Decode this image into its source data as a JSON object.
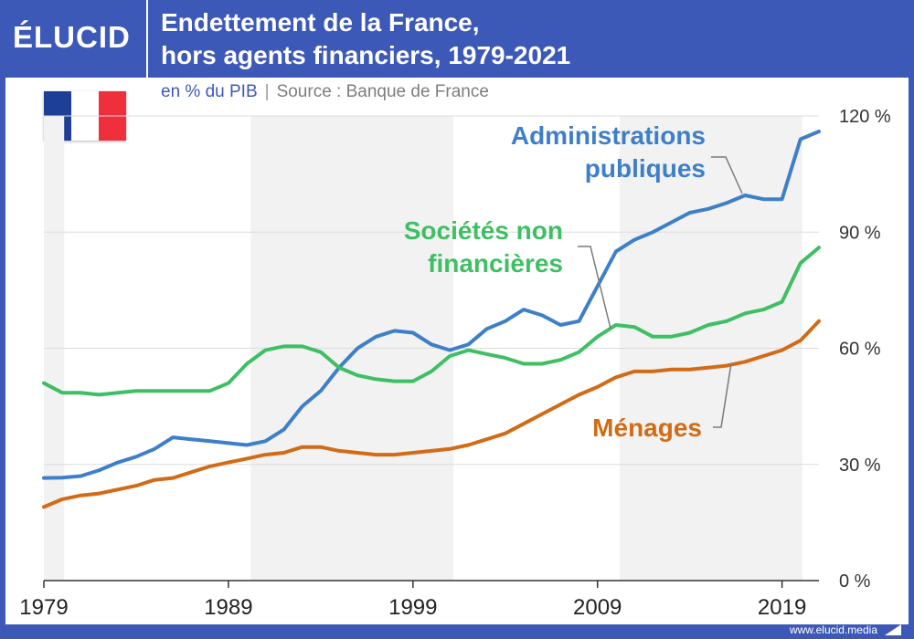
{
  "brand": {
    "logo": "ÉLUCID",
    "url": "www.elucid.media"
  },
  "header": {
    "title_line1": "Endettement de la France,",
    "title_line2": "hors agents financiers, 1979-2021"
  },
  "subtitle": {
    "unit": "en % du PIB",
    "separator": "|",
    "source": "Source : Banque de France"
  },
  "colors": {
    "administrations": "#3e7fc9",
    "societes": "#3fbf63",
    "menages": "#d26b16",
    "band": "#f2f2f2",
    "brand": "#3d59b8"
  },
  "chart_data": {
    "type": "line",
    "xlim": [
      1979,
      2021
    ],
    "ylim": [
      0,
      120
    ],
    "yticks": [
      0,
      30,
      60,
      90,
      120
    ],
    "ytick_labels": [
      "0 %",
      "30 %",
      "60 %",
      "90 %",
      "120 %"
    ],
    "xticks": [
      1979,
      1989,
      1999,
      2009,
      2019
    ],
    "xtick_labels": [
      "1979",
      "1989",
      "1999",
      "2009",
      "2019"
    ],
    "shaded_periods": [
      [
        1979,
        1980.1
      ],
      [
        1990.2,
        2001.2
      ],
      [
        2010.2,
        2020.1
      ]
    ],
    "grid": true,
    "series": [
      {
        "key": "administrations",
        "name": [
          "Administrations",
          "publiques"
        ],
        "points": [
          [
            1979,
            26.5
          ],
          [
            1980,
            26.6
          ],
          [
            1981,
            27
          ],
          [
            1982,
            28.5
          ],
          [
            1983,
            30.5
          ],
          [
            1984,
            32
          ],
          [
            1985,
            34
          ],
          [
            1986,
            37
          ],
          [
            1987,
            36.5
          ],
          [
            1988,
            36
          ],
          [
            1989,
            35.5
          ],
          [
            1990,
            35
          ],
          [
            1991,
            36
          ],
          [
            1992,
            39
          ],
          [
            1993,
            45
          ],
          [
            1994,
            49
          ],
          [
            1995,
            55
          ],
          [
            1996,
            60
          ],
          [
            1997,
            63
          ],
          [
            1998,
            64.5
          ],
          [
            1999,
            64
          ],
          [
            2000,
            61
          ],
          [
            2001,
            59.5
          ],
          [
            2002,
            61
          ],
          [
            2003,
            65
          ],
          [
            2004,
            67
          ],
          [
            2005,
            70
          ],
          [
            2006,
            68.5
          ],
          [
            2007,
            66
          ],
          [
            2008,
            67
          ],
          [
            2009,
            76
          ],
          [
            2010,
            85
          ],
          [
            2011,
            88
          ],
          [
            2012,
            90
          ],
          [
            2013,
            92.5
          ],
          [
            2014,
            95
          ],
          [
            2015,
            96
          ],
          [
            2016,
            97.5
          ],
          [
            2017,
            99.5
          ],
          [
            2018,
            98.5
          ],
          [
            2019,
            98.5
          ],
          [
            2020,
            114
          ],
          [
            2021,
            116
          ]
        ]
      },
      {
        "key": "societes",
        "name": [
          "Sociétés non",
          "financières"
        ],
        "points": [
          [
            1979,
            51
          ],
          [
            1980,
            48.5
          ],
          [
            1981,
            48.5
          ],
          [
            1982,
            48
          ],
          [
            1983,
            48.5
          ],
          [
            1984,
            49
          ],
          [
            1985,
            49
          ],
          [
            1986,
            49
          ],
          [
            1987,
            49
          ],
          [
            1988,
            49
          ],
          [
            1989,
            51
          ],
          [
            1990,
            56
          ],
          [
            1991,
            59.5
          ],
          [
            1992,
            60.5
          ],
          [
            1993,
            60.5
          ],
          [
            1994,
            59
          ],
          [
            1995,
            55
          ],
          [
            1996,
            53
          ],
          [
            1997,
            52
          ],
          [
            1998,
            51.5
          ],
          [
            1999,
            51.5
          ],
          [
            2000,
            54
          ],
          [
            2001,
            58
          ],
          [
            2002,
            59.5
          ],
          [
            2003,
            58.5
          ],
          [
            2004,
            57.5
          ],
          [
            2005,
            56
          ],
          [
            2006,
            56
          ],
          [
            2007,
            57
          ],
          [
            2008,
            59
          ],
          [
            2009,
            63
          ],
          [
            2010,
            66
          ],
          [
            2011,
            65.5
          ],
          [
            2012,
            63
          ],
          [
            2013,
            63
          ],
          [
            2014,
            64
          ],
          [
            2015,
            66
          ],
          [
            2016,
            67
          ],
          [
            2017,
            69
          ],
          [
            2018,
            70
          ],
          [
            2019,
            72
          ],
          [
            2020,
            82
          ],
          [
            2021,
            86
          ]
        ]
      },
      {
        "key": "menages",
        "name": [
          "Ménages"
        ],
        "points": [
          [
            1979,
            19
          ],
          [
            1980,
            21
          ],
          [
            1981,
            22
          ],
          [
            1982,
            22.5
          ],
          [
            1983,
            23.5
          ],
          [
            1984,
            24.5
          ],
          [
            1985,
            26
          ],
          [
            1986,
            26.5
          ],
          [
            1987,
            28
          ],
          [
            1988,
            29.5
          ],
          [
            1989,
            30.5
          ],
          [
            1990,
            31.5
          ],
          [
            1991,
            32.5
          ],
          [
            1992,
            33
          ],
          [
            1993,
            34.5
          ],
          [
            1994,
            34.5
          ],
          [
            1995,
            33.5
          ],
          [
            1996,
            33
          ],
          [
            1997,
            32.5
          ],
          [
            1998,
            32.5
          ],
          [
            1999,
            33
          ],
          [
            2000,
            33.5
          ],
          [
            2001,
            34
          ],
          [
            2002,
            35
          ],
          [
            2003,
            36.5
          ],
          [
            2004,
            38
          ],
          [
            2005,
            40.5
          ],
          [
            2006,
            43
          ],
          [
            2007,
            45.5
          ],
          [
            2008,
            48
          ],
          [
            2009,
            50
          ],
          [
            2010,
            52.5
          ],
          [
            2011,
            54
          ],
          [
            2012,
            54
          ],
          [
            2013,
            54.5
          ],
          [
            2014,
            54.5
          ],
          [
            2015,
            55
          ],
          [
            2016,
            55.5
          ],
          [
            2017,
            56.5
          ],
          [
            2018,
            58
          ],
          [
            2019,
            59.5
          ],
          [
            2020,
            62
          ],
          [
            2021,
            67
          ]
        ]
      }
    ]
  }
}
